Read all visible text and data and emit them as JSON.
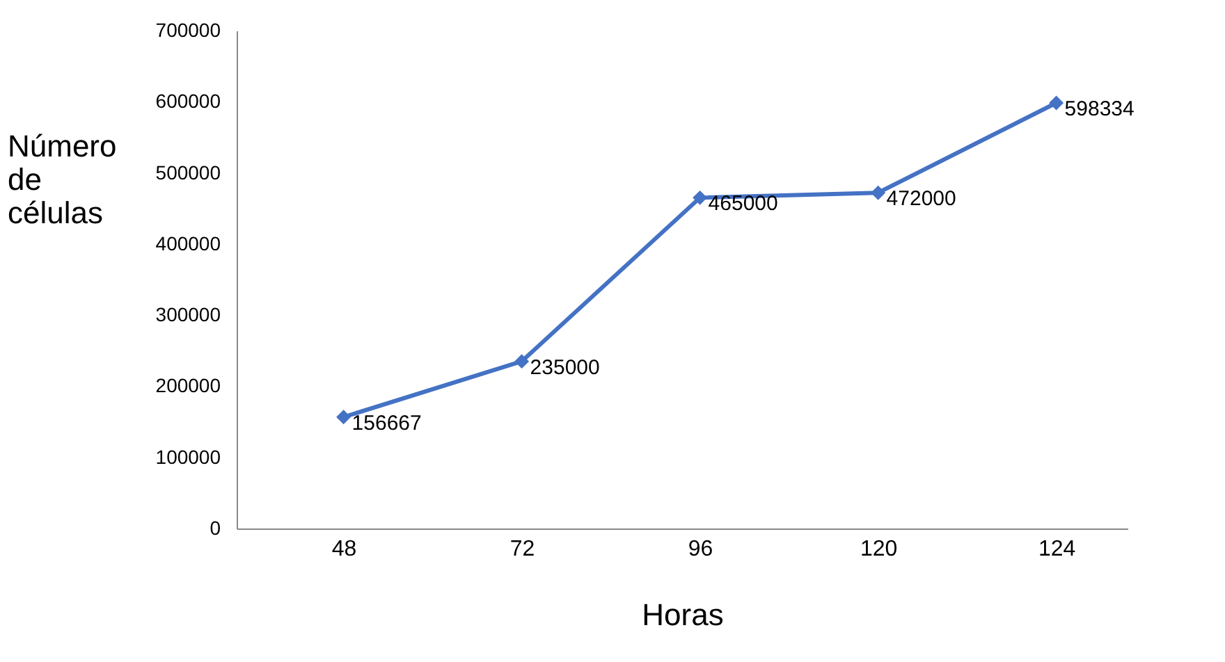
{
  "chart_data": {
    "type": "line",
    "xlabel": "Horas",
    "ylabel": "Número de células",
    "categories": [
      "48",
      "72",
      "96",
      "120",
      "124"
    ],
    "series": [
      {
        "color": "#4472c4",
        "values": [
          156667,
          235000,
          465000,
          472000,
          598334
        ]
      }
    ],
    "ylim": [
      0,
      700000
    ],
    "yticks": [
      0,
      100000,
      200000,
      300000,
      400000,
      500000,
      600000,
      700000
    ],
    "data_labels": true,
    "marker": "diamond",
    "line_style": "solid",
    "grid": false
  }
}
